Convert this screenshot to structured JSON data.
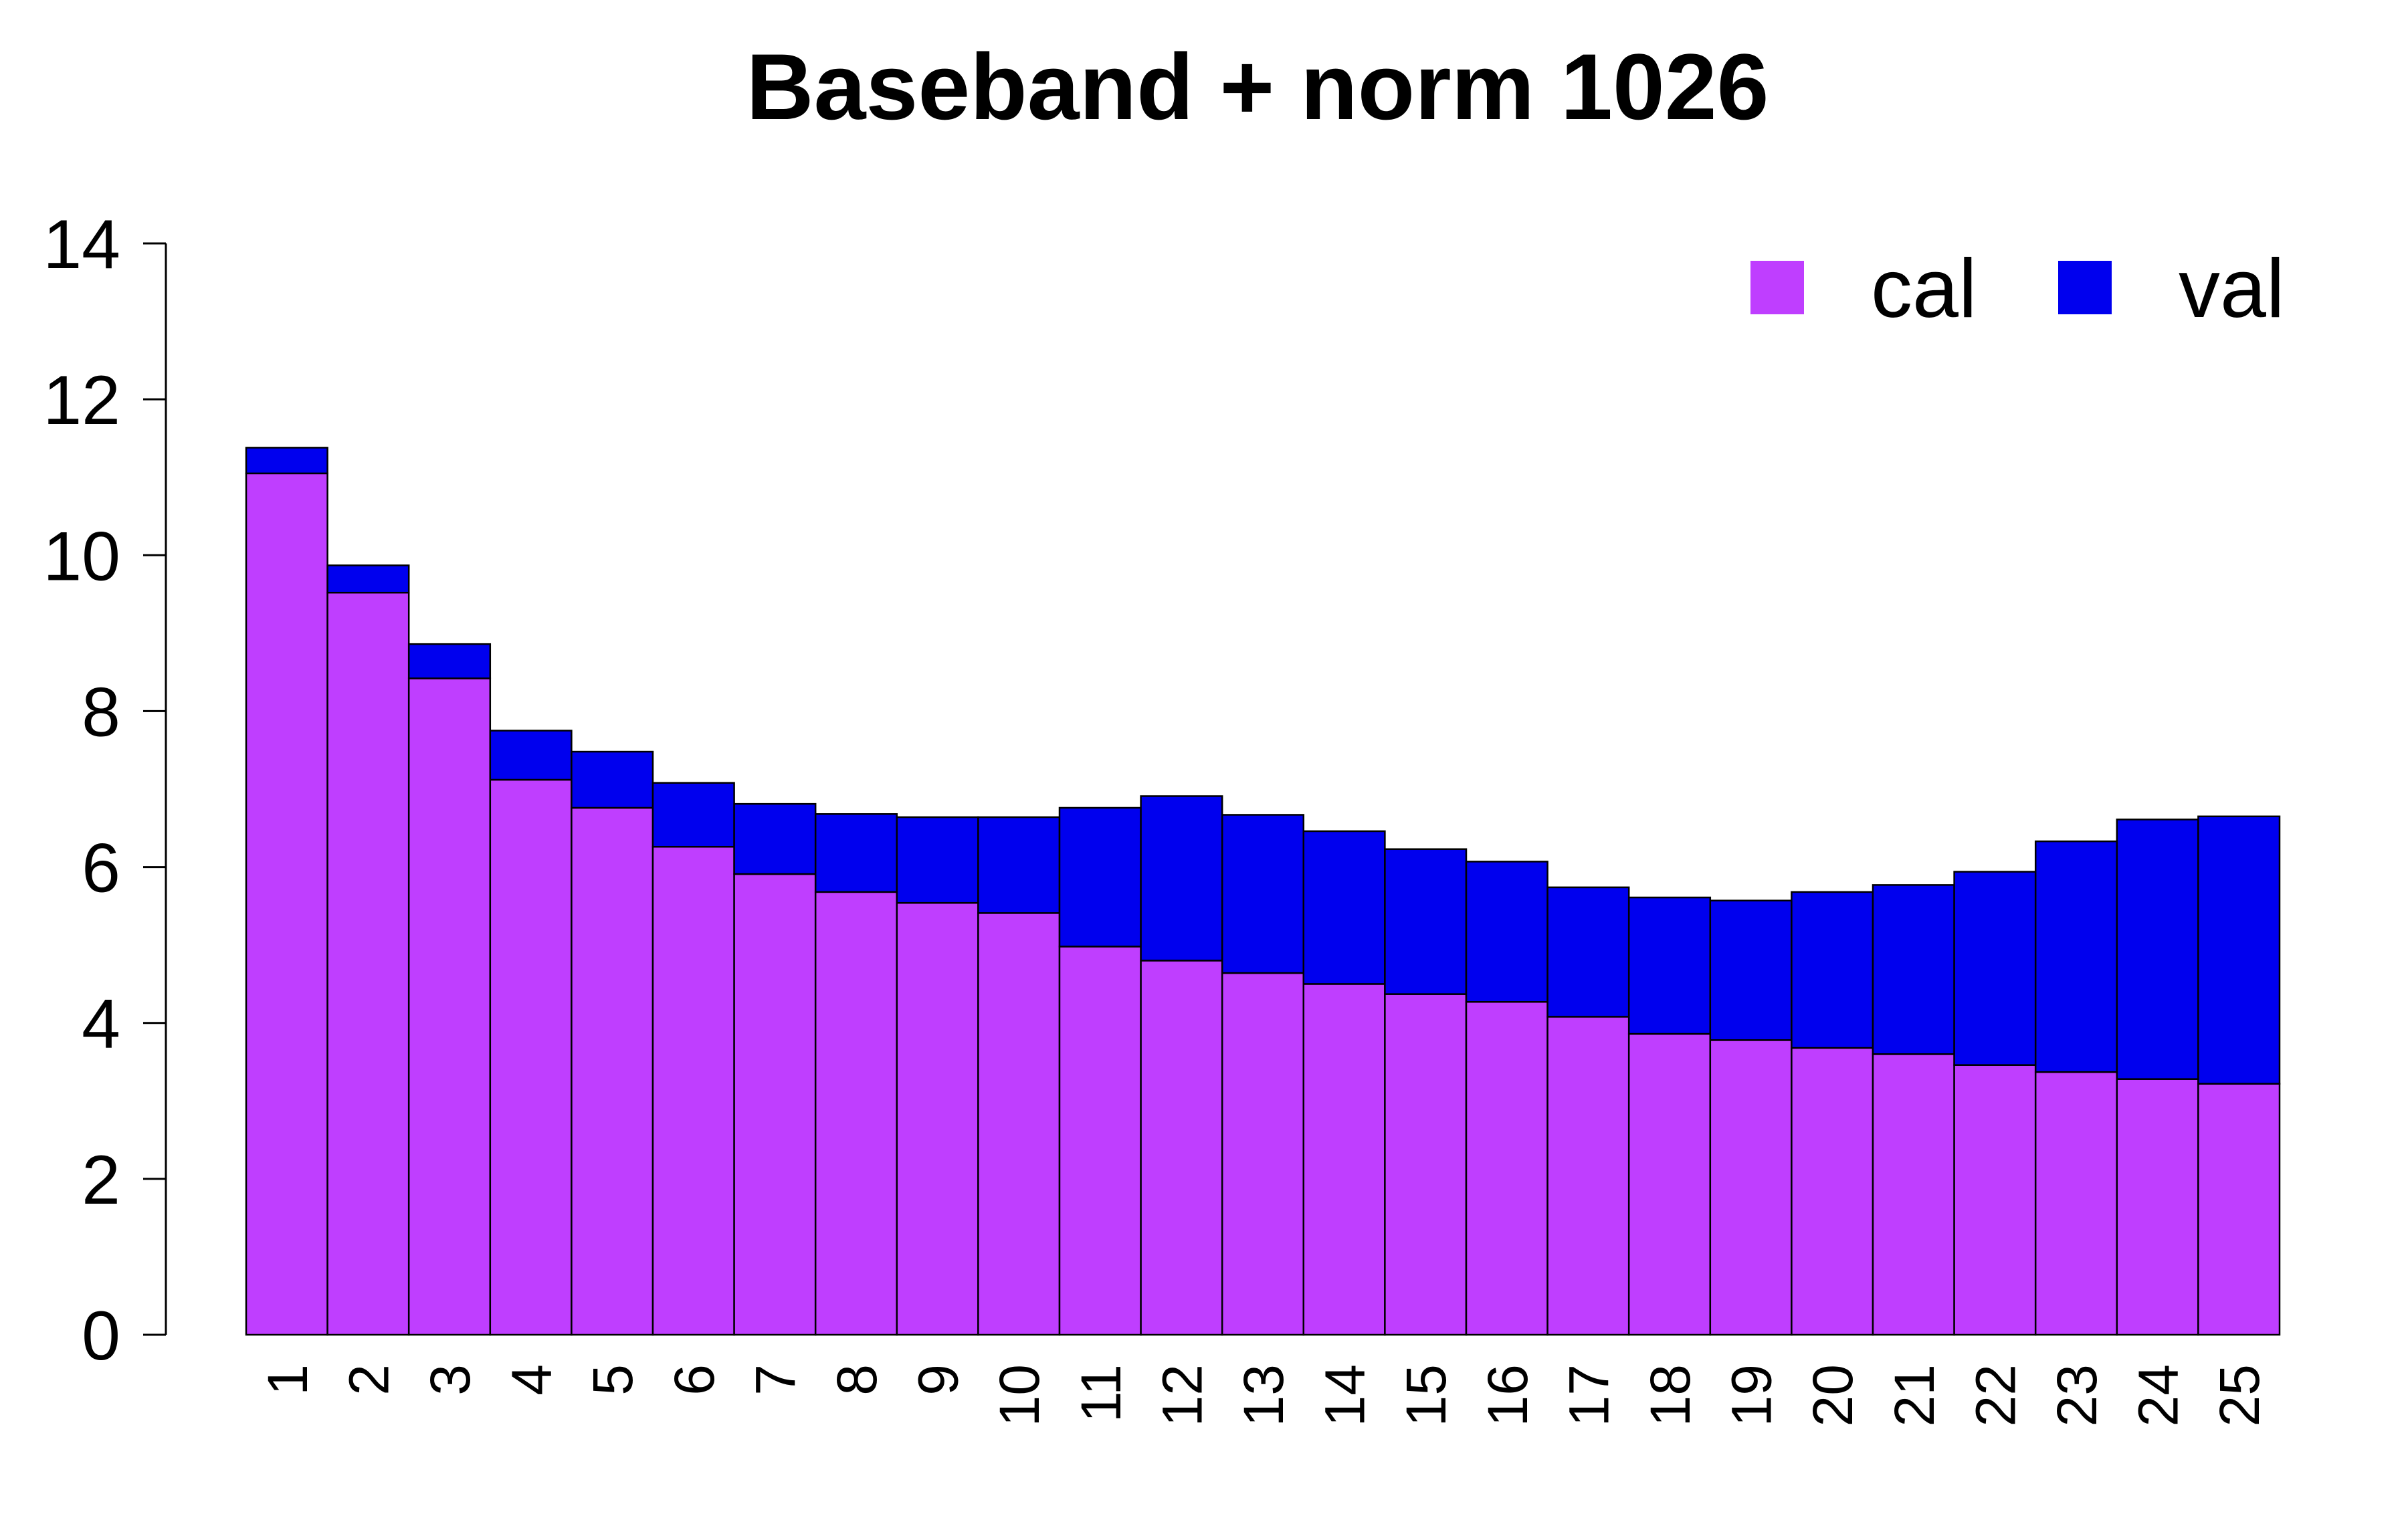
{
  "chart_data": {
    "type": "bar",
    "stacked": true,
    "title": "Baseband + norm 1026",
    "xlabel": "",
    "ylabel": "",
    "ylim": [
      0,
      14
    ],
    "yticks": [
      "0",
      "2",
      "4",
      "6",
      "8",
      "10",
      "12",
      "14"
    ],
    "categories": [
      "1",
      "2",
      "3",
      "4",
      "5",
      "6",
      "7",
      "8",
      "9",
      "10",
      "11",
      "12",
      "13",
      "14",
      "15",
      "16",
      "17",
      "18",
      "19",
      "20",
      "21",
      "22",
      "23",
      "24",
      "25"
    ],
    "series": [
      {
        "name": "cal",
        "color": "#bf3eff",
        "values": [
          11.05,
          9.52,
          8.42,
          7.12,
          6.76,
          6.26,
          5.91,
          5.68,
          5.54,
          5.41,
          4.98,
          4.8,
          4.64,
          4.5,
          4.37,
          4.27,
          4.08,
          3.86,
          3.78,
          3.68,
          3.6,
          3.46,
          3.37,
          3.28,
          3.22
        ]
      },
      {
        "name": "val",
        "color": "#0000ee",
        "values": [
          0.33,
          0.35,
          0.44,
          0.63,
          0.72,
          0.82,
          0.9,
          1.0,
          1.1,
          1.23,
          1.78,
          2.11,
          2.03,
          1.96,
          1.86,
          1.8,
          1.66,
          1.75,
          1.79,
          2.0,
          2.17,
          2.48,
          2.96,
          3.33,
          3.43
        ]
      }
    ],
    "legend_position": "top-right",
    "grid": false
  }
}
